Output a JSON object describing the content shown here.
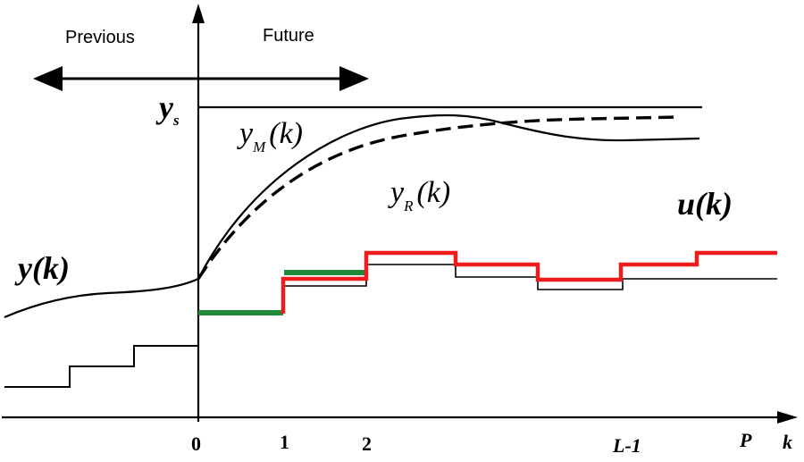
{
  "labels": {
    "previous": "Previous",
    "future": "Future",
    "ys_main": "y",
    "ys_sub": "s",
    "ym_main": "y",
    "ym_sub": "M",
    "ym_arg": "(k)",
    "yr_main": "y",
    "yr_sub": "R",
    "yr_arg": "(k)",
    "uk": "u(k)",
    "yk": "y(k)"
  },
  "axis": {
    "ticks": [
      "0",
      "1",
      "2",
      "L-1",
      "P"
    ],
    "x_label": "k"
  },
  "colors": {
    "axis": "#000000",
    "green_step": "#1e8a3a",
    "red_step": "#ee1c1c"
  }
}
